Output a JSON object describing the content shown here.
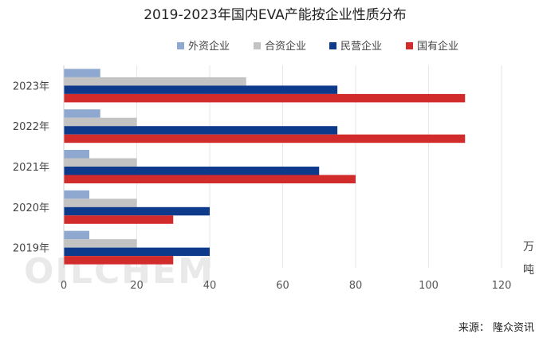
{
  "chart_data": {
    "type": "bar",
    "orientation": "horizontal",
    "title": "2019-2023年国内EVA产能按企业性质分布",
    "categories": [
      "2019年",
      "2020年",
      "2021年",
      "2022年",
      "2023年"
    ],
    "series": [
      {
        "name": "外资企业",
        "color": "#8fa8d0",
        "values": [
          7,
          7,
          7,
          10,
          10
        ]
      },
      {
        "name": "合资企业",
        "color": "#c3c3c3",
        "values": [
          20,
          20,
          20,
          20,
          50
        ]
      },
      {
        "name": "民营企业",
        "color": "#0e3a8c",
        "values": [
          40,
          40,
          70,
          75,
          75
        ]
      },
      {
        "name": "国有企业",
        "color": "#d22b2b",
        "values": [
          30,
          30,
          80,
          110,
          110
        ]
      }
    ],
    "xlim": [
      0,
      120
    ],
    "xticks": [
      0,
      20,
      40,
      60,
      80,
      100,
      120
    ],
    "grid": "vertical",
    "legend_position": "top-right",
    "unit_label": [
      "万",
      "吨"
    ],
    "source": "来源：  隆众资讯",
    "watermark": "OILCHEM"
  }
}
